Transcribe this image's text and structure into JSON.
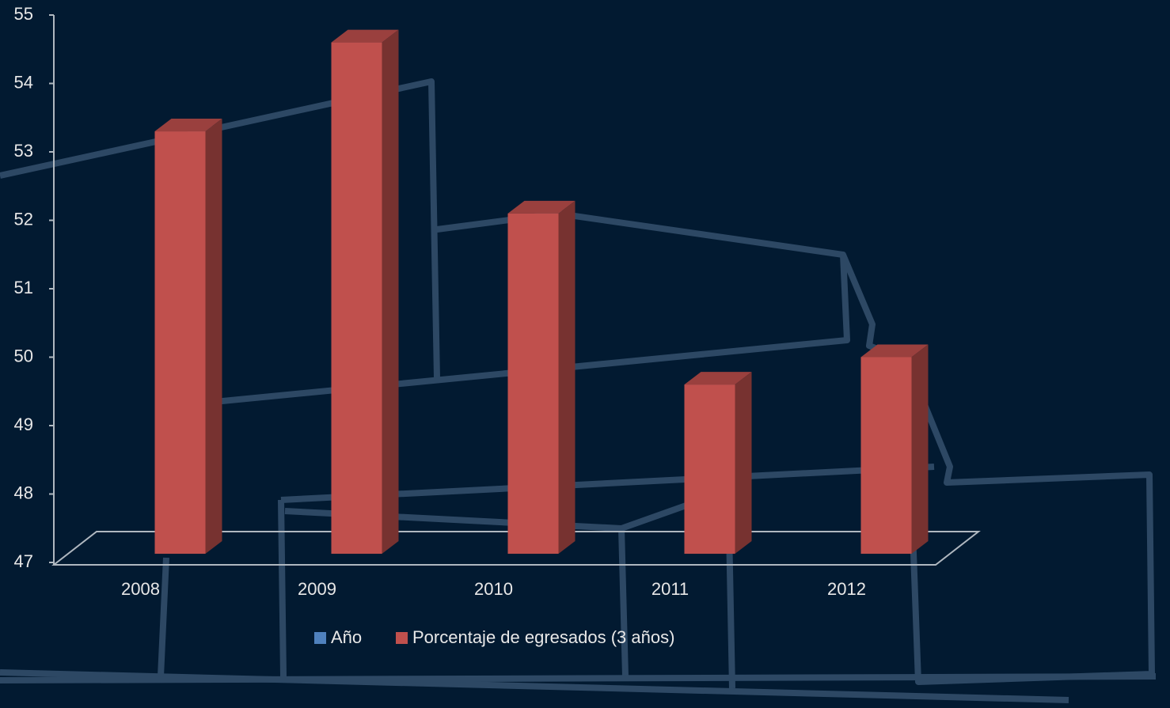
{
  "chart_data": {
    "type": "bar3d",
    "categories": [
      "2008",
      "2009",
      "2010",
      "2011",
      "2012"
    ],
    "series": [
      {
        "name": "Año",
        "color": "#4f81bd",
        "values": [
          null,
          null,
          null,
          null,
          null
        ]
      },
      {
        "name": "Porcentaje de egresados (3 años)",
        "color": "#c0504d",
        "values": [
          53.3,
          54.6,
          52.1,
          49.6,
          50.0
        ]
      }
    ],
    "ylim": [
      47,
      55
    ],
    "yticks": [
      47,
      48,
      49,
      50,
      51,
      52,
      53,
      54,
      55
    ]
  }
}
